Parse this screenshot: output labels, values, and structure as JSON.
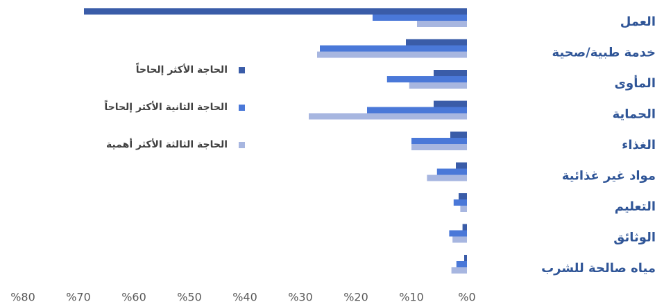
{
  "chart_data": {
    "type": "hbar",
    "categories": [
      "العمل",
      "خدمة طبية/صحية",
      "المأوى",
      "الحماية",
      "الغذاء",
      "مواد غير غذائية",
      "التعليم",
      "الوثائق",
      "مياه صالحة للشرب"
    ],
    "series": [
      {
        "name": "الحاجة الأكثر إلحاحاً",
        "color": "#3a5ca8",
        "values": [
          69,
          11,
          6,
          6,
          3,
          2,
          1.5,
          0.8,
          0.5
        ]
      },
      {
        "name": "الحاجة الثانية الأكثر إلحاحاً",
        "color": "#4a78d8",
        "values": [
          17,
          26.5,
          14.4,
          18,
          10,
          5.4,
          2.4,
          3.2,
          1.9
        ]
      },
      {
        "name": "الحاجة الثالثة الأكثر أهمية",
        "color": "#a7b6e0",
        "values": [
          9,
          27,
          10.4,
          28.5,
          10,
          7.2,
          1.2,
          2.6,
          2.8
        ]
      }
    ],
    "xlim": [
      0,
      80
    ],
    "xticks": [
      {
        "value": 0,
        "label": "%0"
      },
      {
        "value": 10,
        "label": "%10"
      },
      {
        "value": 20,
        "label": "%20"
      },
      {
        "value": 30,
        "label": "%30"
      },
      {
        "value": 40,
        "label": "%40"
      },
      {
        "value": 50,
        "label": "%50"
      },
      {
        "value": 60,
        "label": "%60"
      },
      {
        "value": 70,
        "label": "%70"
      },
      {
        "value": 80,
        "label": "%80"
      }
    ],
    "x_reversed": true,
    "legend_position": "left",
    "grid": false
  }
}
